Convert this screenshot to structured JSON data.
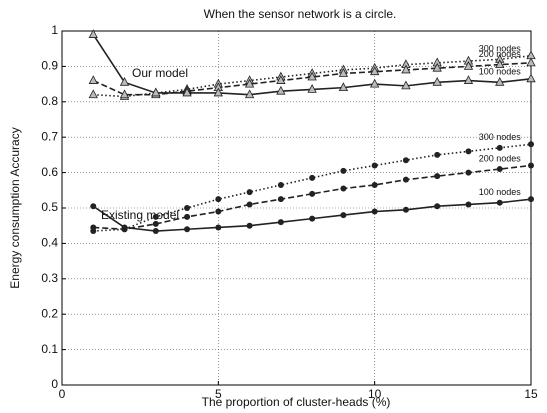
{
  "chart_data": {
    "type": "line",
    "title": "When the sensor network is a circle.",
    "xlabel": "The proportion of cluster-heads (%)",
    "ylabel": "Energy consumption Accuracy",
    "annotations": [
      "Our model",
      "Existing model"
    ],
    "x": [
      1,
      2,
      3,
      4,
      5,
      6,
      7,
      8,
      9,
      10,
      11,
      12,
      13,
      14,
      15
    ],
    "xlim": [
      0,
      15
    ],
    "xticks": [
      0,
      5,
      10,
      15
    ],
    "ylim": [
      0,
      1
    ],
    "yticks": [
      0,
      0.1,
      0.2,
      0.3,
      0.4,
      0.5,
      0.6,
      0.7,
      0.8,
      0.9,
      1
    ],
    "grid": true,
    "series": [
      {
        "name": "300 nodes",
        "color": "#222222",
        "style": "dotted",
        "marker": "triangle",
        "values": [
          0.82,
          0.815,
          0.825,
          0.835,
          0.85,
          0.86,
          0.87,
          0.88,
          0.89,
          0.895,
          0.905,
          0.91,
          0.915,
          0.92,
          0.93
        ]
      },
      {
        "name": "200 nodes",
        "color": "#222222",
        "style": "dashed",
        "marker": "triangle",
        "values": [
          0.86,
          0.82,
          0.82,
          0.83,
          0.84,
          0.85,
          0.86,
          0.87,
          0.88,
          0.885,
          0.89,
          0.895,
          0.9,
          0.905,
          0.91
        ]
      },
      {
        "name": "100 nodes",
        "color": "#222222",
        "style": "solid",
        "marker": "triangle",
        "values": [
          0.99,
          0.855,
          0.825,
          0.825,
          0.825,
          0.82,
          0.83,
          0.835,
          0.84,
          0.85,
          0.845,
          0.855,
          0.86,
          0.855,
          0.865
        ]
      },
      {
        "name": "300 nodes",
        "color": "#222222",
        "style": "dotted",
        "marker": "circle",
        "values": [
          0.435,
          0.44,
          0.475,
          0.5,
          0.525,
          0.545,
          0.565,
          0.585,
          0.605,
          0.62,
          0.635,
          0.65,
          0.66,
          0.67,
          0.68
        ]
      },
      {
        "name": "200 nodes",
        "color": "#222222",
        "style": "dashed",
        "marker": "circle",
        "values": [
          0.445,
          0.44,
          0.455,
          0.475,
          0.49,
          0.51,
          0.525,
          0.54,
          0.555,
          0.565,
          0.58,
          0.59,
          0.6,
          0.61,
          0.62
        ]
      },
      {
        "name": "100 nodes",
        "color": "#222222",
        "style": "solid",
        "marker": "circle",
        "values": [
          0.505,
          0.445,
          0.435,
          0.44,
          0.445,
          0.45,
          0.46,
          0.47,
          0.48,
          0.49,
          0.495,
          0.505,
          0.51,
          0.515,
          0.525
        ]
      }
    ]
  }
}
